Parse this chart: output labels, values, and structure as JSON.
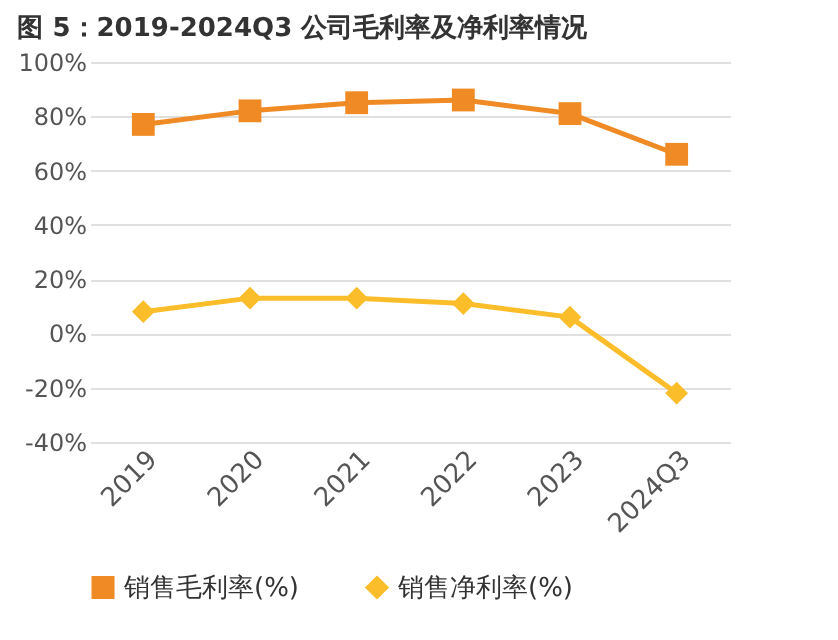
{
  "chart_data": {
    "type": "line",
    "title": "图 5：2019-2024Q3 公司毛利率及净利率情况",
    "categories": [
      "2019",
      "2020",
      "2021",
      "2022",
      "2023",
      "2024Q3"
    ],
    "series": [
      {
        "name": "销售毛利率(%)",
        "color": "#f08a24",
        "marker": "square",
        "values": [
          77,
          82,
          85,
          86,
          81,
          66
        ]
      },
      {
        "name": "销售净利率(%)",
        "color": "#fbbd2a",
        "marker": "diamond",
        "values": [
          8,
          13,
          13,
          11,
          6,
          -22
        ]
      }
    ],
    "ylim": [
      -40,
      100
    ],
    "yticks": [
      {
        "value": -40,
        "label": "-40%"
      },
      {
        "value": -20,
        "label": "-20%"
      },
      {
        "value": 0,
        "label": "0%"
      },
      {
        "value": 20,
        "label": "20%"
      },
      {
        "value": 40,
        "label": "40%"
      },
      {
        "value": 60,
        "label": "60%"
      },
      {
        "value": 80,
        "label": "80%"
      },
      {
        "value": 100,
        "label": "100%"
      }
    ],
    "grid": "y",
    "legend": "bottom",
    "line_style": "solid"
  }
}
